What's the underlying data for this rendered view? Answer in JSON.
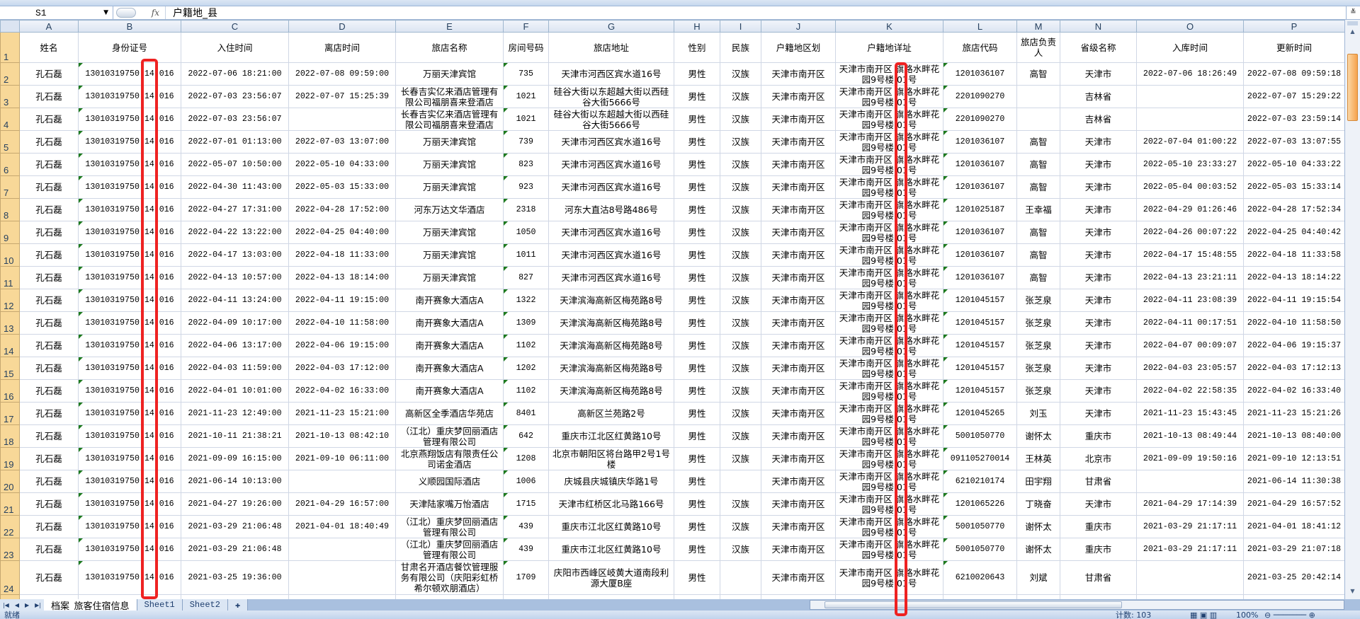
{
  "formula_bar": {
    "name_box": "S1",
    "fx_label": "fx",
    "value": "户籍地_县"
  },
  "columns": [
    "A",
    "B",
    "C",
    "D",
    "E",
    "F",
    "G",
    "H",
    "I",
    "J",
    "K",
    "L",
    "M",
    "N",
    "O",
    "P"
  ],
  "header_row": [
    "姓名",
    "身份证号",
    "入住时间",
    "离店时间",
    "旅店名称",
    "房间号码",
    "旅店地址",
    "性别",
    "民族",
    "户籍地区划",
    "户籍地详址",
    "旅店代码",
    "旅店负责人",
    "省级名称",
    "入库时间",
    "更新时间"
  ],
  "rows": [
    {
      "n": "2",
      "cells": [
        "孔石磊",
        "13010319750 14 016",
        "2022-07-06 18:21:00",
        "2022-07-08 09:59:00",
        "万丽天津宾馆",
        "735",
        "天津市河西区宾水道16号",
        "男性",
        "汉族",
        "天津市南开区",
        "天津市南开区 旗路水畔花园9号楼 01号",
        "1201036107",
        "高智",
        "天津市",
        "2022-07-06 18:26:49",
        "2022-07-08 09:59:18"
      ]
    },
    {
      "n": "3",
      "cells": [
        "孔石磊",
        "13010319750 14 016",
        "2022-07-03 23:56:07",
        "2022-07-07 15:25:39",
        "长春吉实亿来酒店管理有限公司福朋喜来登酒店",
        "1021",
        "硅谷大街以东超越大街以西硅谷大街5666号",
        "男性",
        "汉族",
        "天津市南开区",
        "天津市南开区 旗路水畔花园9号楼 01号",
        "2201090270",
        "",
        "吉林省",
        "",
        "2022-07-07 15:29:22"
      ]
    },
    {
      "n": "4",
      "cells": [
        "孔石磊",
        "13010319750 14 016",
        "2022-07-03 23:56:07",
        "",
        "长春吉实亿来酒店管理有限公司福朋喜来登酒店",
        "1021",
        "硅谷大街以东超越大街以西硅谷大街5666号",
        "男性",
        "汉族",
        "天津市南开区",
        "天津市南开区 旗路水畔花园9号楼 01号",
        "2201090270",
        "",
        "吉林省",
        "",
        "2022-07-03 23:59:14"
      ]
    },
    {
      "n": "5",
      "cells": [
        "孔石磊",
        "13010319750 14 016",
        "2022-07-01 01:13:00",
        "2022-07-03 13:07:00",
        "万丽天津宾馆",
        "739",
        "天津市河西区宾水道16号",
        "男性",
        "汉族",
        "天津市南开区",
        "天津市南开区 旗路水畔花园9号楼 01号",
        "1201036107",
        "高智",
        "天津市",
        "2022-07-04 01:00:22",
        "2022-07-03 13:07:55"
      ]
    },
    {
      "n": "6",
      "cells": [
        "孔石磊",
        "13010319750 14 016",
        "2022-05-07 10:50:00",
        "2022-05-10 04:33:00",
        "万丽天津宾馆",
        "823",
        "天津市河西区宾水道16号",
        "男性",
        "汉族",
        "天津市南开区",
        "天津市南开区 旗路水畔花园9号楼 01号",
        "1201036107",
        "高智",
        "天津市",
        "2022-05-10 23:33:27",
        "2022-05-10 04:33:22"
      ]
    },
    {
      "n": "7",
      "cells": [
        "孔石磊",
        "13010319750 14 016",
        "2022-04-30 11:43:00",
        "2022-05-03 15:33:00",
        "万丽天津宾馆",
        "923",
        "天津市河西区宾水道16号",
        "男性",
        "汉族",
        "天津市南开区",
        "天津市南开区 旗路水畔花园9号楼 01号",
        "1201036107",
        "高智",
        "天津市",
        "2022-05-04 00:03:52",
        "2022-05-03 15:33:14"
      ]
    },
    {
      "n": "8",
      "cells": [
        "孔石磊",
        "13010319750 14 016",
        "2022-04-27 17:31:00",
        "2022-04-28 17:52:00",
        "河东万达文华酒店",
        "2318",
        "河东大直沽8号路486号",
        "男性",
        "汉族",
        "天津市南开区",
        "天津市南开区 旗路水畔花园9号楼 01号",
        "1201025187",
        "王幸福",
        "天津市",
        "2022-04-29 01:26:46",
        "2022-04-28 17:52:34"
      ]
    },
    {
      "n": "9",
      "cells": [
        "孔石磊",
        "13010319750 14 016",
        "2022-04-22 13:22:00",
        "2022-04-25 04:40:00",
        "万丽天津宾馆",
        "1050",
        "天津市河西区宾水道16号",
        "男性",
        "汉族",
        "天津市南开区",
        "天津市南开区 旗路水畔花园9号楼 01号",
        "1201036107",
        "高智",
        "天津市",
        "2022-04-26 00:07:22",
        "2022-04-25 04:40:42"
      ]
    },
    {
      "n": "10",
      "cells": [
        "孔石磊",
        "13010319750 14 016",
        "2022-04-17 13:03:00",
        "2022-04-18 11:33:00",
        "万丽天津宾馆",
        "1011",
        "天津市河西区宾水道16号",
        "男性",
        "汉族",
        "天津市南开区",
        "天津市南开区 旗路水畔花园9号楼 01号",
        "1201036107",
        "高智",
        "天津市",
        "2022-04-17 15:48:55",
        "2022-04-18 11:33:58"
      ]
    },
    {
      "n": "11",
      "cells": [
        "孔石磊",
        "13010319750 14 016",
        "2022-04-13 10:57:00",
        "2022-04-13 18:14:00",
        "万丽天津宾馆",
        "827",
        "天津市河西区宾水道16号",
        "男性",
        "汉族",
        "天津市南开区",
        "天津市南开区 旗路水畔花园9号楼 01号",
        "1201036107",
        "高智",
        "天津市",
        "2022-04-13 23:21:11",
        "2022-04-13 18:14:22"
      ]
    },
    {
      "n": "12",
      "cells": [
        "孔石磊",
        "13010319750 14 016",
        "2022-04-11 13:24:00",
        "2022-04-11 19:15:00",
        "南开赛象大酒店A",
        "1322",
        "天津滨海高新区梅苑路8号",
        "男性",
        "汉族",
        "天津市南开区",
        "天津市南开区 旗路水畔花园9号楼 01号",
        "1201045157",
        "张芝泉",
        "天津市",
        "2022-04-11 23:08:39",
        "2022-04-11 19:15:54"
      ]
    },
    {
      "n": "13",
      "cells": [
        "孔石磊",
        "13010319750 14 016",
        "2022-04-09 10:17:00",
        "2022-04-10 11:58:00",
        "南开赛象大酒店A",
        "1309",
        "天津滨海高新区梅苑路8号",
        "男性",
        "汉族",
        "天津市南开区",
        "天津市南开区 旗路水畔花园9号楼 01号",
        "1201045157",
        "张芝泉",
        "天津市",
        "2022-04-11 00:17:51",
        "2022-04-10 11:58:50"
      ]
    },
    {
      "n": "14",
      "cells": [
        "孔石磊",
        "13010319750 14 016",
        "2022-04-06 13:17:00",
        "2022-04-06 19:15:00",
        "南开赛象大酒店A",
        "1102",
        "天津滨海高新区梅苑路8号",
        "男性",
        "汉族",
        "天津市南开区",
        "天津市南开区 旗路水畔花园9号楼 01号",
        "1201045157",
        "张芝泉",
        "天津市",
        "2022-04-07 00:09:07",
        "2022-04-06 19:15:37"
      ]
    },
    {
      "n": "15",
      "cells": [
        "孔石磊",
        "13010319750 14 016",
        "2022-04-03 11:59:00",
        "2022-04-03 17:12:00",
        "南开赛象大酒店A",
        "1202",
        "天津滨海高新区梅苑路8号",
        "男性",
        "汉族",
        "天津市南开区",
        "天津市南开区 旗路水畔花园9号楼 01号",
        "1201045157",
        "张芝泉",
        "天津市",
        "2022-04-03 23:05:57",
        "2022-04-03 17:12:13"
      ]
    },
    {
      "n": "16",
      "cells": [
        "孔石磊",
        "13010319750 14 016",
        "2022-04-01 10:01:00",
        "2022-04-02 16:33:00",
        "南开赛象大酒店A",
        "1102",
        "天津滨海高新区梅苑路8号",
        "男性",
        "汉族",
        "天津市南开区",
        "天津市南开区 旗路水畔花园9号楼 01号",
        "1201045157",
        "张芝泉",
        "天津市",
        "2022-04-02 22:58:35",
        "2022-04-02 16:33:40"
      ]
    },
    {
      "n": "17",
      "cells": [
        "孔石磊",
        "13010319750 14 016",
        "2021-11-23 12:49:00",
        "2021-11-23 15:21:00",
        "高新区全季酒店华苑店",
        "8401",
        "高新区兰苑路2号",
        "男性",
        "汉族",
        "天津市南开区",
        "天津市南开区 旗路水畔花园9号楼 01号",
        "1201045265",
        "刘玉",
        "天津市",
        "2021-11-23 15:43:45",
        "2021-11-23 15:21:26"
      ]
    },
    {
      "n": "18",
      "cells": [
        "孔石磊",
        "13010319750 14 016",
        "2021-10-11 21:38:21",
        "2021-10-13 08:42:10",
        "（江北）重庆梦回丽酒店管理有限公司",
        "642",
        "重庆市江北区红黄路10号",
        "男性",
        "汉族",
        "天津市南开区",
        "天津市南开区 旗路水畔花园9号楼 01号",
        "5001050770",
        "谢怀太",
        "重庆市",
        "2021-10-13 08:49:44",
        "2021-10-13 08:40:00"
      ]
    },
    {
      "n": "19",
      "cells": [
        "孔石磊",
        "13010319750 14 016",
        "2021-09-09 16:15:00",
        "2021-09-10 06:11:00",
        "北京燕翔饭店有限责任公司诺金酒店",
        "1208",
        "北京市朝阳区将台路甲2号1号楼",
        "男性",
        "汉族",
        "天津市南开区",
        "天津市南开区 旗路水畔花园9号楼 01号",
        "091105270014",
        "王林英",
        "北京市",
        "2021-09-09 19:50:16",
        "2021-09-10 12:13:51"
      ]
    },
    {
      "n": "20",
      "cells": [
        "孔石磊",
        "13010319750 14 016",
        "2021-06-14 10:13:00",
        "",
        "义顺园国际酒店",
        "1006",
        "庆城县庆城镇庆华路1号",
        "男性",
        "",
        "天津市南开区",
        "天津市南开区 旗路水畔花园9号楼 01号",
        "6210210174",
        "田宇翔",
        "甘肃省",
        "",
        "2021-06-14 11:30:38"
      ]
    },
    {
      "n": "21",
      "cells": [
        "孔石磊",
        "13010319750 14 016",
        "2021-04-27 19:26:00",
        "2021-04-29 16:57:00",
        "天津陆家嘴万怡酒店",
        "1715",
        "天津市红桥区北马路166号",
        "男性",
        "汉族",
        "天津市南开区",
        "天津市南开区 旗路水畔花园9号楼 01号",
        "1201065226",
        "丁晓奋",
        "天津市",
        "2021-04-29 17:14:39",
        "2021-04-29 16:57:52"
      ]
    },
    {
      "n": "22",
      "cells": [
        "孔石磊",
        "13010319750 14 016",
        "2021-03-29 21:06:48",
        "2021-04-01 18:40:49",
        "（江北）重庆梦回丽酒店管理有限公司",
        "439",
        "重庆市江北区红黄路10号",
        "男性",
        "汉族",
        "天津市南开区",
        "天津市南开区 旗路水畔花园9号楼 01号",
        "5001050770",
        "谢怀太",
        "重庆市",
        "2021-03-29 21:17:11",
        "2021-04-01 18:41:12"
      ]
    },
    {
      "n": "23",
      "cells": [
        "孔石磊",
        "13010319750 14 016",
        "2021-03-29 21:06:48",
        "",
        "（江北）重庆梦回丽酒店管理有限公司",
        "439",
        "重庆市江北区红黄路10号",
        "男性",
        "汉族",
        "天津市南开区",
        "天津市南开区 旗路水畔花园9号楼 01号",
        "5001050770",
        "谢怀太",
        "重庆市",
        "2021-03-29 21:17:11",
        "2021-03-29 21:07:18"
      ]
    },
    {
      "n": "24",
      "cells": [
        "孔石磊",
        "13010319750 14 016",
        "2021-03-25 19:36:00",
        "",
        "甘肃名开酒店餐饮管理服务有限公司（庆阳彩虹桥希尔顿欢朋酒店）",
        "1709",
        "庆阳市西峰区岐黄大道南段利源大厦B座",
        "男性",
        "",
        "天津市南开区",
        "天津市南开区 旗路水畔花园9号楼 01号",
        "6210020643",
        "刘斌",
        "甘肃省",
        "",
        "2021-03-25 20:42:14"
      ]
    }
  ],
  "sheet_tabs": [
    "档案_旅客住宿信息",
    "Sheet1",
    "Sheet2"
  ],
  "active_tab": "档案_旅客住宿信息",
  "status": {
    "ready": "就绪",
    "count": "计数: 103",
    "zoom": "100%"
  },
  "colors": {
    "highlight_box": "#ee2222",
    "row_header": "#f8d898",
    "error_indicator": "#1d7a1d"
  }
}
